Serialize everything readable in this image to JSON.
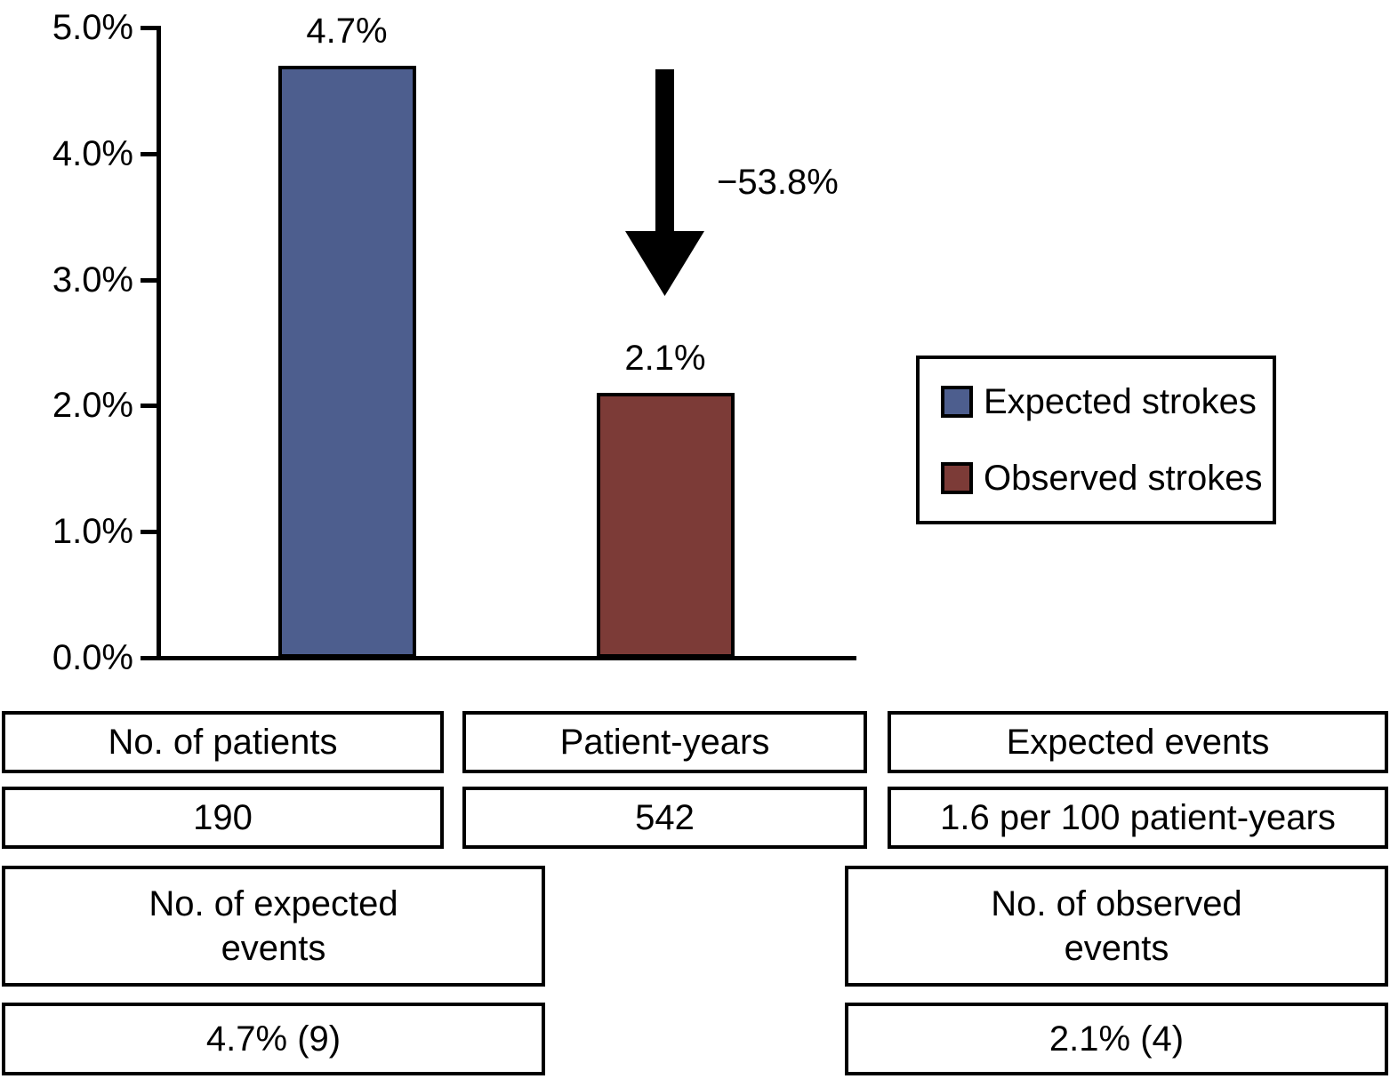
{
  "chart_data": {
    "type": "bar",
    "title": "",
    "xlabel": "",
    "ylabel": "",
    "ylim": [
      0,
      5
    ],
    "grid": false,
    "legend_position": "right",
    "categories": [
      "Expected strokes",
      "Observed strokes"
    ],
    "values": [
      4.7,
      2.1
    ],
    "value_labels": [
      "4.7%",
      "2.1%"
    ],
    "bar_colors": [
      "#4D5E8E",
      "#7C3B37"
    ],
    "yticks": [
      "0.0%",
      "1.0%",
      "2.0%",
      "3.0%",
      "4.0%",
      "5.0%"
    ],
    "ytick_values": [
      0,
      1,
      2,
      3,
      4,
      5
    ],
    "annotation": {
      "arrow": "down",
      "label": "−53.8%"
    },
    "legend": [
      {
        "label": "Expected strokes",
        "color": "#4D5E8E"
      },
      {
        "label": "Observed strokes",
        "color": "#7C3B37"
      }
    ]
  },
  "table": {
    "top_headers": [
      "No. of patients",
      "Patient-years",
      "Expected events"
    ],
    "top_values": [
      "190",
      "542",
      "1.6 per 100 patient-years"
    ],
    "bottom_headers": [
      [
        "No. of expected",
        "events"
      ],
      [
        "No. of observed",
        "events"
      ]
    ],
    "bottom_values": [
      "4.7% (9)",
      "2.1% (4)"
    ]
  },
  "colors": {
    "expected_bar": "#4D5E8E",
    "observed_bar": "#7C3B37",
    "arrow": "#000000",
    "axis": "#000000"
  }
}
